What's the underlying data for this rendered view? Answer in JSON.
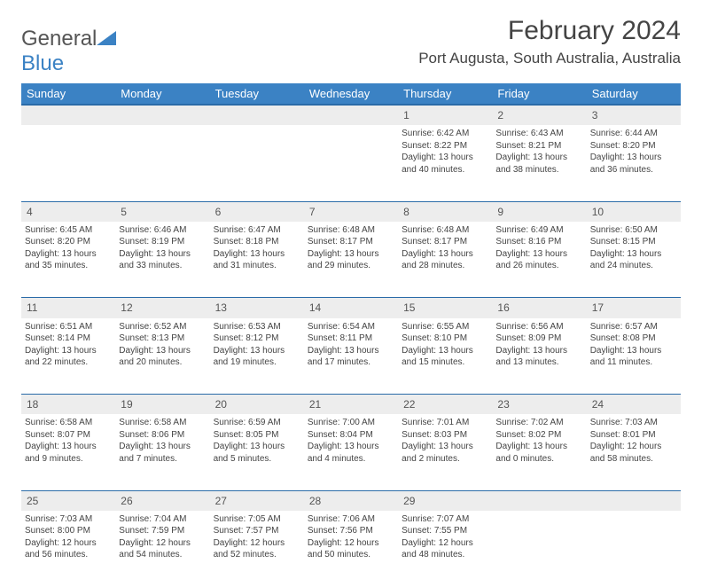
{
  "logo": {
    "text1": "General",
    "text2": "Blue"
  },
  "title": "February 2024",
  "location": "Port Augusta, South Australia, Australia",
  "colors": {
    "header_bg": "#3b82c4",
    "header_border": "#2a6ba8",
    "daynum_bg": "#ededed"
  },
  "weekdays": [
    "Sunday",
    "Monday",
    "Tuesday",
    "Wednesday",
    "Thursday",
    "Friday",
    "Saturday"
  ],
  "weeks": [
    [
      null,
      null,
      null,
      null,
      {
        "n": "1",
        "sr": "6:42 AM",
        "ss": "8:22 PM",
        "dl": "13 hours and 40 minutes."
      },
      {
        "n": "2",
        "sr": "6:43 AM",
        "ss": "8:21 PM",
        "dl": "13 hours and 38 minutes."
      },
      {
        "n": "3",
        "sr": "6:44 AM",
        "ss": "8:20 PM",
        "dl": "13 hours and 36 minutes."
      }
    ],
    [
      {
        "n": "4",
        "sr": "6:45 AM",
        "ss": "8:20 PM",
        "dl": "13 hours and 35 minutes."
      },
      {
        "n": "5",
        "sr": "6:46 AM",
        "ss": "8:19 PM",
        "dl": "13 hours and 33 minutes."
      },
      {
        "n": "6",
        "sr": "6:47 AM",
        "ss": "8:18 PM",
        "dl": "13 hours and 31 minutes."
      },
      {
        "n": "7",
        "sr": "6:48 AM",
        "ss": "8:17 PM",
        "dl": "13 hours and 29 minutes."
      },
      {
        "n": "8",
        "sr": "6:48 AM",
        "ss": "8:17 PM",
        "dl": "13 hours and 28 minutes."
      },
      {
        "n": "9",
        "sr": "6:49 AM",
        "ss": "8:16 PM",
        "dl": "13 hours and 26 minutes."
      },
      {
        "n": "10",
        "sr": "6:50 AM",
        "ss": "8:15 PM",
        "dl": "13 hours and 24 minutes."
      }
    ],
    [
      {
        "n": "11",
        "sr": "6:51 AM",
        "ss": "8:14 PM",
        "dl": "13 hours and 22 minutes."
      },
      {
        "n": "12",
        "sr": "6:52 AM",
        "ss": "8:13 PM",
        "dl": "13 hours and 20 minutes."
      },
      {
        "n": "13",
        "sr": "6:53 AM",
        "ss": "8:12 PM",
        "dl": "13 hours and 19 minutes."
      },
      {
        "n": "14",
        "sr": "6:54 AM",
        "ss": "8:11 PM",
        "dl": "13 hours and 17 minutes."
      },
      {
        "n": "15",
        "sr": "6:55 AM",
        "ss": "8:10 PM",
        "dl": "13 hours and 15 minutes."
      },
      {
        "n": "16",
        "sr": "6:56 AM",
        "ss": "8:09 PM",
        "dl": "13 hours and 13 minutes."
      },
      {
        "n": "17",
        "sr": "6:57 AM",
        "ss": "8:08 PM",
        "dl": "13 hours and 11 minutes."
      }
    ],
    [
      {
        "n": "18",
        "sr": "6:58 AM",
        "ss": "8:07 PM",
        "dl": "13 hours and 9 minutes."
      },
      {
        "n": "19",
        "sr": "6:58 AM",
        "ss": "8:06 PM",
        "dl": "13 hours and 7 minutes."
      },
      {
        "n": "20",
        "sr": "6:59 AM",
        "ss": "8:05 PM",
        "dl": "13 hours and 5 minutes."
      },
      {
        "n": "21",
        "sr": "7:00 AM",
        "ss": "8:04 PM",
        "dl": "13 hours and 4 minutes."
      },
      {
        "n": "22",
        "sr": "7:01 AM",
        "ss": "8:03 PM",
        "dl": "13 hours and 2 minutes."
      },
      {
        "n": "23",
        "sr": "7:02 AM",
        "ss": "8:02 PM",
        "dl": "13 hours and 0 minutes."
      },
      {
        "n": "24",
        "sr": "7:03 AM",
        "ss": "8:01 PM",
        "dl": "12 hours and 58 minutes."
      }
    ],
    [
      {
        "n": "25",
        "sr": "7:03 AM",
        "ss": "8:00 PM",
        "dl": "12 hours and 56 minutes."
      },
      {
        "n": "26",
        "sr": "7:04 AM",
        "ss": "7:59 PM",
        "dl": "12 hours and 54 minutes."
      },
      {
        "n": "27",
        "sr": "7:05 AM",
        "ss": "7:57 PM",
        "dl": "12 hours and 52 minutes."
      },
      {
        "n": "28",
        "sr": "7:06 AM",
        "ss": "7:56 PM",
        "dl": "12 hours and 50 minutes."
      },
      {
        "n": "29",
        "sr": "7:07 AM",
        "ss": "7:55 PM",
        "dl": "12 hours and 48 minutes."
      },
      null,
      null
    ]
  ],
  "labels": {
    "sunrise": "Sunrise:",
    "sunset": "Sunset:",
    "daylight": "Daylight:"
  }
}
